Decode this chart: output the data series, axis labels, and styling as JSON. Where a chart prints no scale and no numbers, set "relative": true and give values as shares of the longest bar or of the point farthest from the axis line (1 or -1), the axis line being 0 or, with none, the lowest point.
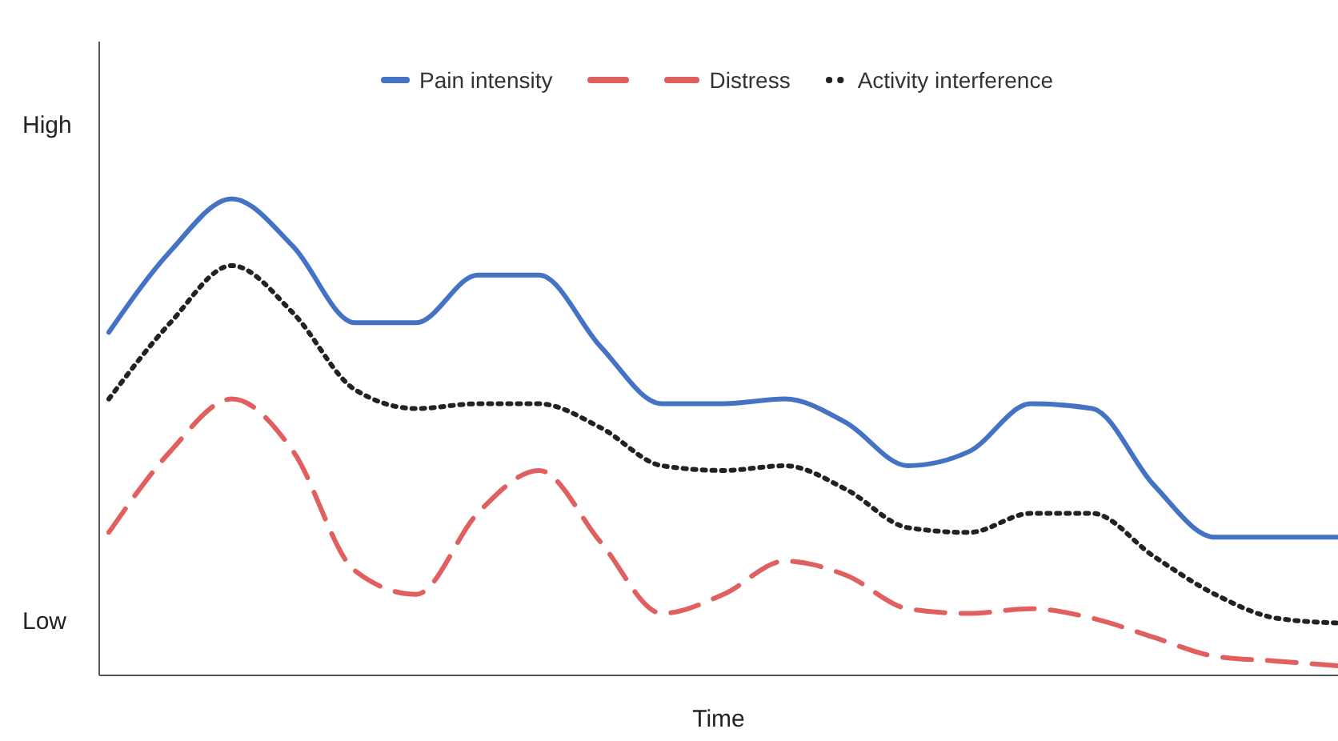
{
  "chart_data": {
    "type": "line",
    "xlabel": "Time",
    "categories": [
      null,
      null,
      null,
      null,
      null,
      null,
      null,
      null,
      null,
      null,
      null,
      null,
      null,
      null,
      null,
      null,
      null,
      null,
      null,
      null,
      null
    ],
    "relative": true,
    "annotations": [
      "High",
      "Low"
    ],
    "series": [
      {
        "name": "Pain intensity",
        "color": "#4472c4",
        "line_style": "solid",
        "values": [
          0.72,
          0.89,
          1.0,
          0.9,
          0.74,
          0.74,
          0.84,
          0.84,
          0.69,
          0.57,
          0.57,
          0.58,
          0.53,
          0.44,
          0.47,
          0.57,
          0.56,
          0.4,
          0.29,
          0.29,
          0.29
        ]
      },
      {
        "name": "Distress",
        "color": "#e06060",
        "line_style": "dashed",
        "values": [
          0.3,
          0.47,
          0.58,
          0.47,
          0.22,
          0.17,
          0.34,
          0.43,
          0.28,
          0.13,
          0.17,
          0.24,
          0.21,
          0.14,
          0.13,
          0.14,
          0.12,
          0.08,
          0.04,
          0.03,
          0.02
        ]
      },
      {
        "name": "Activity interference",
        "color": "#222222",
        "line_style": "dotted",
        "values": [
          0.58,
          0.74,
          0.86,
          0.76,
          0.6,
          0.56,
          0.57,
          0.57,
          0.52,
          0.44,
          0.43,
          0.44,
          0.39,
          0.31,
          0.3,
          0.34,
          0.34,
          0.25,
          0.17,
          0.12,
          0.11
        ]
      }
    ],
    "grid": false,
    "legend": "top",
    "marker": "none"
  }
}
